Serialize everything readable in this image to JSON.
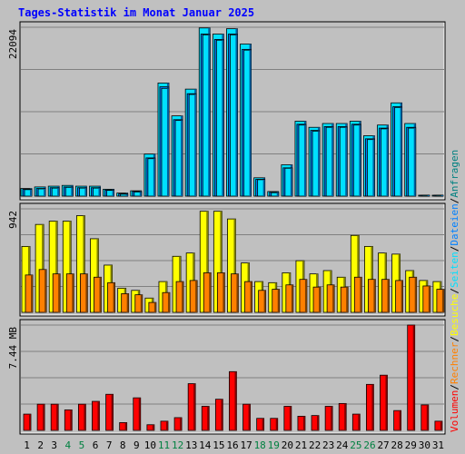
{
  "title": "Tages-Statistik im Monat Januar 2025",
  "colors": {
    "background": "#c0c0c0",
    "title": "#0000ff",
    "anfragen_light": "#00e0ff",
    "anfragen_dark": "#0060a0",
    "dateien_light": "#0080ff",
    "dateien_dark": "#004080",
    "seiten_light": "#00e0ff",
    "besuche_light": "#ffff00",
    "besuche_dark": "#808000",
    "rechner_light": "#ff8000",
    "rechner_dark": "#804000",
    "volumen_light": "#ff0000",
    "volumen_dark": "#800000",
    "weekday_label": "#000000",
    "weekend_label": "#008040"
  },
  "chart_data": {
    "type": "bar",
    "title": "Tages-Statistik im Monat Januar 2025",
    "days": [
      "1",
      "2",
      "3",
      "4",
      "5",
      "6",
      "7",
      "8",
      "9",
      "10",
      "11",
      "12",
      "13",
      "14",
      "15",
      "16",
      "17",
      "18",
      "19",
      "20",
      "21",
      "22",
      "23",
      "24",
      "25",
      "26",
      "27",
      "28",
      "29",
      "30",
      "31"
    ],
    "weekend_days": [
      "4",
      "5",
      "11",
      "12",
      "18",
      "19",
      "25",
      "26"
    ],
    "legend": [
      {
        "key": "volumen",
        "label": "Volumen",
        "color": "#ff0000"
      },
      {
        "key": "rechner",
        "label": "Rechner",
        "color": "#ff8000"
      },
      {
        "key": "besuche",
        "label": "Besuche",
        "color": "#ffff00"
      },
      {
        "key": "seiten",
        "label": "Seiten",
        "color": "#00e0ff"
      },
      {
        "key": "dateien",
        "label": "Dateien",
        "color": "#0080ff"
      },
      {
        "key": "anfragen",
        "label": "Anfragen",
        "color": "#008080"
      }
    ],
    "panels": [
      {
        "id": "requests",
        "max_label": "22094",
        "ymax": 22094,
        "series": [
          {
            "name": "Anfragen",
            "values": [
              1000,
              1200,
              1300,
              1400,
              1300,
              1300,
              900,
              400,
              700,
              5500,
              14800,
              10500,
              14000,
              22000,
              21200,
              21900,
              19900,
              2400,
              600,
              4100,
              9800,
              9000,
              9500,
              9500,
              9800,
              7900,
              9300,
              12200,
              9500,
              100,
              100
            ]
          },
          {
            "name": "Dateien",
            "values": [
              900,
              1000,
              1100,
              1200,
              1100,
              1100,
              800,
              300,
              600,
              5000,
              14300,
              10000,
              13400,
              21200,
              20500,
              21200,
              19200,
              2200,
              500,
              3700,
              9400,
              8600,
              9100,
              9100,
              9400,
              7500,
              8900,
              11700,
              9000,
              100,
              100
            ]
          },
          {
            "name": "Seiten",
            "values": [
              850,
              950,
              1050,
              1150,
              1050,
              1050,
              750,
              250,
              550,
              4900,
              14100,
              9900,
              13300,
              21100,
              20400,
              21100,
              19100,
              2150,
              450,
              3650,
              9300,
              8500,
              9000,
              9000,
              9300,
              7400,
              8800,
              11600,
              8900,
              100,
              100
            ]
          }
        ]
      },
      {
        "id": "visits",
        "max_label": "942",
        "ymax": 942,
        "series": [
          {
            "name": "Besuche",
            "values": [
              600,
              800,
              830,
              830,
              880,
              670,
              430,
              220,
              200,
              130,
              280,
              510,
              540,
              920,
              920,
              850,
              450,
              280,
              270,
              360,
              470,
              350,
              380,
              320,
              700,
              600,
              540,
              530,
              380,
              290,
              280
            ]
          },
          {
            "name": "Rechner",
            "values": [
              340,
              390,
              350,
              350,
              350,
              320,
              270,
              170,
              160,
              90,
              180,
              280,
              290,
              360,
              360,
              350,
              280,
              200,
              210,
              250,
              300,
              230,
              250,
              230,
              320,
              300,
              300,
              290,
              320,
              240,
              210
            ]
          }
        ]
      },
      {
        "id": "volume",
        "max_label": "7.44 MB",
        "ymax": 7.44,
        "series": [
          {
            "name": "Volumen",
            "values": [
              1.15,
              1.85,
              1.85,
              1.45,
              1.85,
              2.05,
              2.55,
              0.55,
              2.3,
              0.4,
              0.65,
              0.9,
              3.3,
              1.7,
              2.2,
              4.15,
              1.85,
              0.85,
              0.85,
              1.7,
              1.0,
              1.05,
              1.7,
              1.9,
              1.15,
              3.25,
              3.9,
              1.4,
              7.44,
              1.8,
              0.65
            ]
          }
        ]
      }
    ]
  }
}
